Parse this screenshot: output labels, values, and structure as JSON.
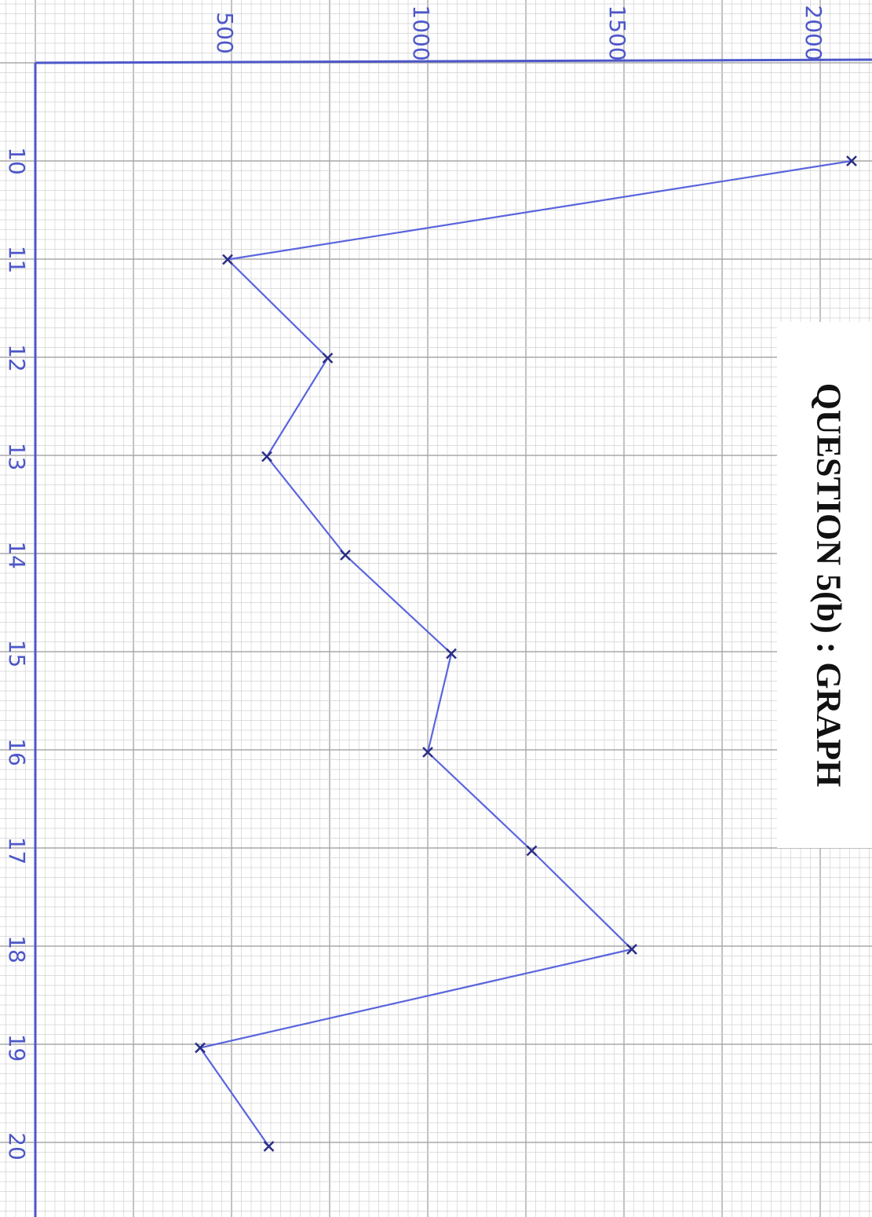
{
  "title": "QUESTION 5(b) : GRAPH",
  "colors": {
    "paper": "#ffffff",
    "grid_minor": "#d2d2d2",
    "grid_major": "#a8a8a8",
    "axis": "#4d57c9",
    "line": "#5a65dd",
    "marker": "#2a2f86",
    "ink": "#4d57c9"
  },
  "chart_data": {
    "type": "line",
    "title": "QUESTION 5(b) : GRAPH",
    "xlabel": "",
    "ylabel": "",
    "x_tick_labels": [
      "10",
      "11",
      "12",
      "13",
      "14",
      "15",
      "16",
      "17",
      "18",
      "19",
      "20"
    ],
    "y_tick_labels": [
      "500",
      "1000",
      "1500",
      "2000"
    ],
    "y_ticks": [
      500,
      1000,
      1500,
      2000
    ],
    "xlim": [
      9,
      21
    ],
    "ylim": [
      0,
      2000
    ],
    "grid": true,
    "orientation": "rotated 90° clockwise (y values increase to the right, x values increase downward)",
    "series": [
      {
        "x": [
          10,
          11,
          12,
          13,
          14,
          15,
          16,
          17,
          18,
          19,
          20
        ],
        "values": [
          2080,
          490,
          745,
          590,
          790,
          1060,
          1000,
          1265,
          1520,
          420,
          595
        ],
        "marker": "x"
      }
    ]
  }
}
